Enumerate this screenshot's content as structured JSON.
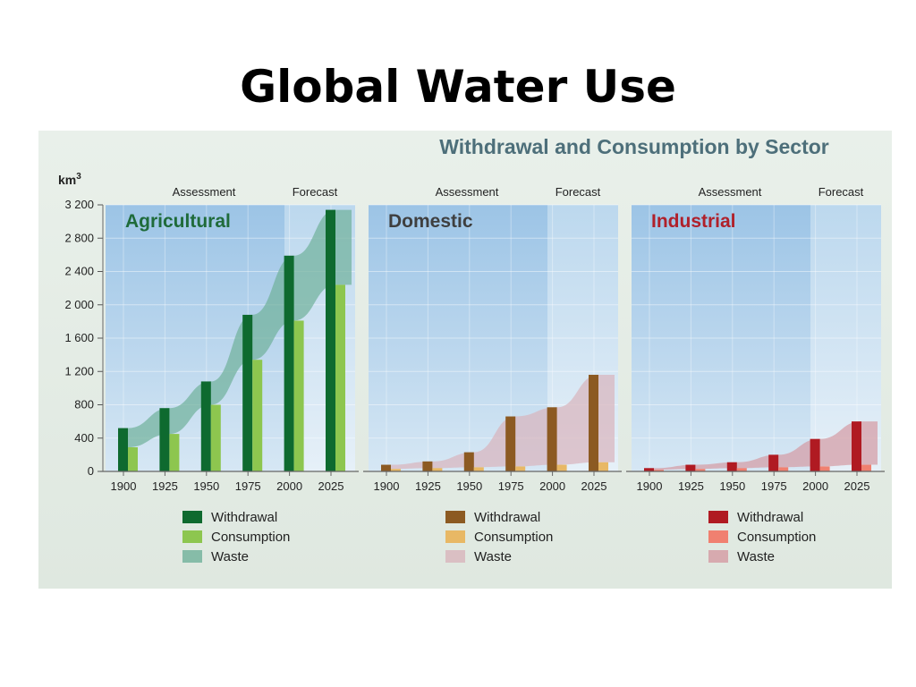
{
  "slide_title": "Global Water Use",
  "chart_data": {
    "type": "bar",
    "title": "Withdrawal and Consumption by Sector",
    "ylabel": "km",
    "ylabel_sup": "3",
    "ylim": [
      0,
      3200
    ],
    "yticks": [
      0,
      400,
      800,
      1200,
      1600,
      2000,
      2400,
      2800,
      3200
    ],
    "ytick_labels": [
      "0",
      "400",
      "800",
      "1 200",
      "1 600",
      "2 000",
      "2 400",
      "2 800",
      "3 200"
    ],
    "categories": [
      "1900",
      "1925",
      "1950",
      "1975",
      "2000",
      "2025"
    ],
    "period_labels": [
      "Assessment",
      "Forecast"
    ],
    "panels": [
      {
        "title": "Agricultural",
        "title_color": "#1f6b3a",
        "colors": {
          "withdrawal": "#0e6a2f",
          "consumption": "#8dc64f",
          "waste": "#6fb09a"
        },
        "series": [
          {
            "name": "Withdrawal",
            "values": [
              520,
              760,
              1080,
              1880,
              2590,
              3140
            ]
          },
          {
            "name": "Consumption",
            "values": [
              290,
              450,
              800,
              1340,
              1810,
              2240
            ]
          },
          {
            "name": "Waste"
          }
        ]
      },
      {
        "title": "Domestic",
        "title_color": "#3f3f3f",
        "colors": {
          "withdrawal": "#8c5a22",
          "consumption": "#e8b865",
          "waste": "#d8b4bc"
        },
        "series": [
          {
            "name": "Withdrawal",
            "values": [
              80,
              120,
              230,
              660,
              770,
              1160
            ]
          },
          {
            "name": "Consumption",
            "values": [
              30,
              40,
              50,
              60,
              80,
              110
            ]
          },
          {
            "name": "Waste"
          }
        ]
      },
      {
        "title": "Industrial",
        "title_color": "#b0202a",
        "colors": {
          "withdrawal": "#b01a22",
          "consumption": "#f08070",
          "waste": "#d49aa2"
        },
        "series": [
          {
            "name": "Withdrawal",
            "values": [
              40,
              80,
              110,
              200,
              390,
              600
            ]
          },
          {
            "name": "Consumption",
            "values": [
              20,
              30,
              40,
              50,
              60,
              80
            ]
          },
          {
            "name": "Waste"
          }
        ]
      }
    ]
  }
}
